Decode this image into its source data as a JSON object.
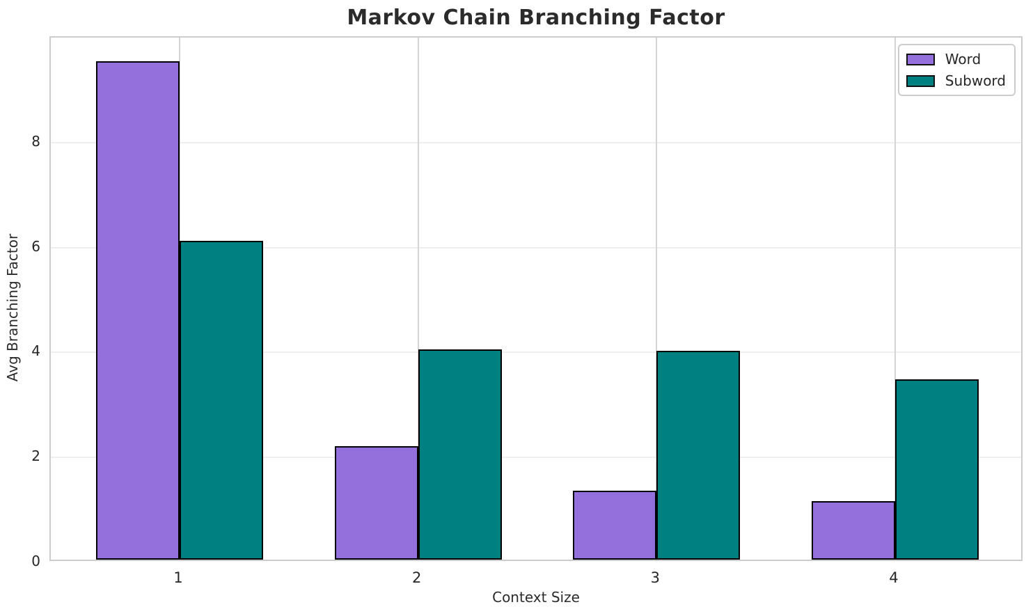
{
  "chart_data": {
    "type": "bar",
    "title": "Markov Chain Branching Factor",
    "xlabel": "Context Size",
    "ylabel": "Avg Branching Factor",
    "categories": [
      "1",
      "2",
      "3",
      "4"
    ],
    "series": [
      {
        "name": "Word",
        "color": "#9370DB",
        "values": [
          9.5,
          2.16,
          1.31,
          1.11
        ]
      },
      {
        "name": "Subword",
        "color": "#008080",
        "values": [
          6.08,
          4.0,
          3.98,
          3.43
        ]
      }
    ],
    "bar_width": 0.35,
    "xlim": [
      0.46,
      4.54
    ],
    "ylim": [
      0,
      10
    ],
    "yticks": [
      0,
      2,
      4,
      6,
      8
    ],
    "grid": true,
    "legend_position": "upper right"
  },
  "colors": {
    "bar_edge": "#000000",
    "horizontal_grid": "#efefef",
    "vertical_grid": "#d4d4d4",
    "spine": "#cccccc",
    "text": "#262626",
    "title": "#2b2b2b",
    "background": "#ffffff"
  }
}
